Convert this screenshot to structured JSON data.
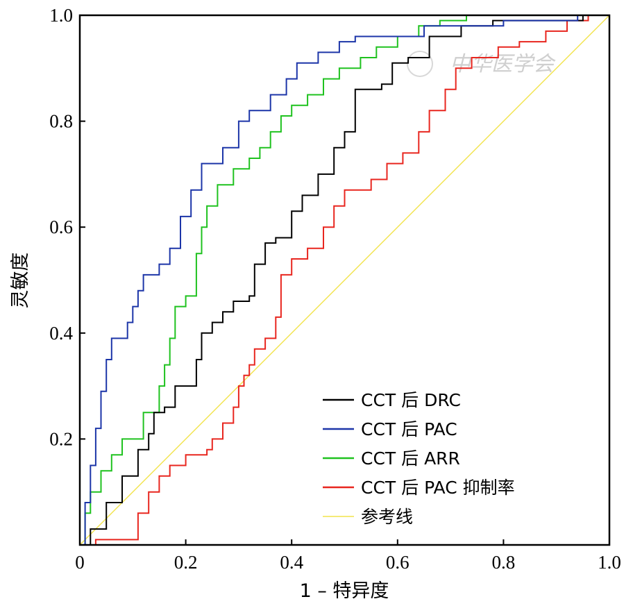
{
  "chart_data": {
    "type": "line",
    "title": "",
    "xlabel": "1 – 特异度",
    "ylabel": "灵敏度",
    "xlim": [
      0,
      1.0
    ],
    "ylim": [
      0,
      1.0
    ],
    "x_ticks": [
      "0",
      "0.2",
      "0.4",
      "0.6",
      "0.8",
      "1.0"
    ],
    "y_ticks": [
      "0.2",
      "0.4",
      "0.6",
      "0.8",
      "1.0"
    ],
    "grid": false,
    "legend_position": "bottom-right",
    "watermark": "中华医学会",
    "series": [
      {
        "name": "CCT 后 DRC",
        "color": "#000000",
        "step": true,
        "points": [
          [
            0,
            0
          ],
          [
            0.02,
            0.03
          ],
          [
            0.05,
            0.08
          ],
          [
            0.08,
            0.13
          ],
          [
            0.11,
            0.18
          ],
          [
            0.13,
            0.21
          ],
          [
            0.14,
            0.25
          ],
          [
            0.16,
            0.26
          ],
          [
            0.18,
            0.3
          ],
          [
            0.21,
            0.3
          ],
          [
            0.22,
            0.35
          ],
          [
            0.23,
            0.4
          ],
          [
            0.25,
            0.42
          ],
          [
            0.27,
            0.44
          ],
          [
            0.29,
            0.46
          ],
          [
            0.32,
            0.47
          ],
          [
            0.33,
            0.53
          ],
          [
            0.35,
            0.57
          ],
          [
            0.37,
            0.58
          ],
          [
            0.4,
            0.63
          ],
          [
            0.42,
            0.66
          ],
          [
            0.45,
            0.7
          ],
          [
            0.48,
            0.75
          ],
          [
            0.5,
            0.78
          ],
          [
            0.52,
            0.86
          ],
          [
            0.57,
            0.87
          ],
          [
            0.59,
            0.91
          ],
          [
            0.62,
            0.92
          ],
          [
            0.66,
            0.96
          ],
          [
            0.72,
            0.98
          ],
          [
            0.78,
            0.99
          ],
          [
            0.95,
            1.0
          ],
          [
            1.0,
            1.0
          ]
        ]
      },
      {
        "name": "CCT 后 PAC",
        "color": "#1c35a8",
        "step": true,
        "points": [
          [
            0,
            0
          ],
          [
            0.01,
            0.08
          ],
          [
            0.02,
            0.15
          ],
          [
            0.03,
            0.22
          ],
          [
            0.04,
            0.29
          ],
          [
            0.05,
            0.35
          ],
          [
            0.06,
            0.39
          ],
          [
            0.09,
            0.42
          ],
          [
            0.1,
            0.45
          ],
          [
            0.11,
            0.48
          ],
          [
            0.12,
            0.51
          ],
          [
            0.15,
            0.53
          ],
          [
            0.17,
            0.56
          ],
          [
            0.19,
            0.62
          ],
          [
            0.21,
            0.67
          ],
          [
            0.23,
            0.72
          ],
          [
            0.27,
            0.75
          ],
          [
            0.3,
            0.8
          ],
          [
            0.32,
            0.82
          ],
          [
            0.36,
            0.85
          ],
          [
            0.39,
            0.88
          ],
          [
            0.41,
            0.91
          ],
          [
            0.45,
            0.93
          ],
          [
            0.49,
            0.95
          ],
          [
            0.52,
            0.96
          ],
          [
            0.65,
            0.98
          ],
          [
            0.8,
            0.99
          ],
          [
            0.92,
            0.99
          ],
          [
            0.94,
            1.0
          ],
          [
            1.0,
            1.0
          ]
        ]
      },
      {
        "name": "CCT 后 ARR",
        "color": "#1fc21f",
        "step": true,
        "points": [
          [
            0,
            0
          ],
          [
            0.01,
            0.06
          ],
          [
            0.02,
            0.1
          ],
          [
            0.04,
            0.14
          ],
          [
            0.06,
            0.17
          ],
          [
            0.08,
            0.2
          ],
          [
            0.12,
            0.25
          ],
          [
            0.15,
            0.3
          ],
          [
            0.16,
            0.34
          ],
          [
            0.17,
            0.39
          ],
          [
            0.18,
            0.45
          ],
          [
            0.2,
            0.47
          ],
          [
            0.22,
            0.55
          ],
          [
            0.23,
            0.6
          ],
          [
            0.24,
            0.64
          ],
          [
            0.26,
            0.68
          ],
          [
            0.29,
            0.71
          ],
          [
            0.32,
            0.73
          ],
          [
            0.34,
            0.75
          ],
          [
            0.36,
            0.78
          ],
          [
            0.38,
            0.81
          ],
          [
            0.4,
            0.83
          ],
          [
            0.43,
            0.85
          ],
          [
            0.46,
            0.88
          ],
          [
            0.49,
            0.9
          ],
          [
            0.53,
            0.92
          ],
          [
            0.56,
            0.94
          ],
          [
            0.6,
            0.96
          ],
          [
            0.64,
            0.98
          ],
          [
            0.68,
            0.99
          ],
          [
            0.73,
            1.0
          ],
          [
            1.0,
            1.0
          ]
        ]
      },
      {
        "name": "CCT 后 PAC 抑制率",
        "color": "#e8261f",
        "step": true,
        "points": [
          [
            0,
            0
          ],
          [
            0.03,
            0.01
          ],
          [
            0.1,
            0.01
          ],
          [
            0.11,
            0.06
          ],
          [
            0.13,
            0.1
          ],
          [
            0.15,
            0.13
          ],
          [
            0.17,
            0.15
          ],
          [
            0.2,
            0.17
          ],
          [
            0.24,
            0.18
          ],
          [
            0.25,
            0.2
          ],
          [
            0.27,
            0.23
          ],
          [
            0.29,
            0.26
          ],
          [
            0.3,
            0.3
          ],
          [
            0.31,
            0.32
          ],
          [
            0.32,
            0.34
          ],
          [
            0.33,
            0.37
          ],
          [
            0.35,
            0.39
          ],
          [
            0.37,
            0.43
          ],
          [
            0.38,
            0.51
          ],
          [
            0.4,
            0.54
          ],
          [
            0.43,
            0.56
          ],
          [
            0.46,
            0.6
          ],
          [
            0.48,
            0.64
          ],
          [
            0.5,
            0.67
          ],
          [
            0.55,
            0.69
          ],
          [
            0.58,
            0.72
          ],
          [
            0.61,
            0.74
          ],
          [
            0.64,
            0.78
          ],
          [
            0.66,
            0.82
          ],
          [
            0.69,
            0.86
          ],
          [
            0.71,
            0.9
          ],
          [
            0.74,
            0.92
          ],
          [
            0.79,
            0.94
          ],
          [
            0.83,
            0.95
          ],
          [
            0.88,
            0.97
          ],
          [
            0.92,
            0.99
          ],
          [
            0.96,
            1.0
          ],
          [
            1.0,
            1.0
          ]
        ]
      },
      {
        "name": "参考线",
        "color": "#f2e34a",
        "step": false,
        "points": [
          [
            0,
            0
          ],
          [
            1.0,
            1.0
          ]
        ]
      }
    ]
  }
}
